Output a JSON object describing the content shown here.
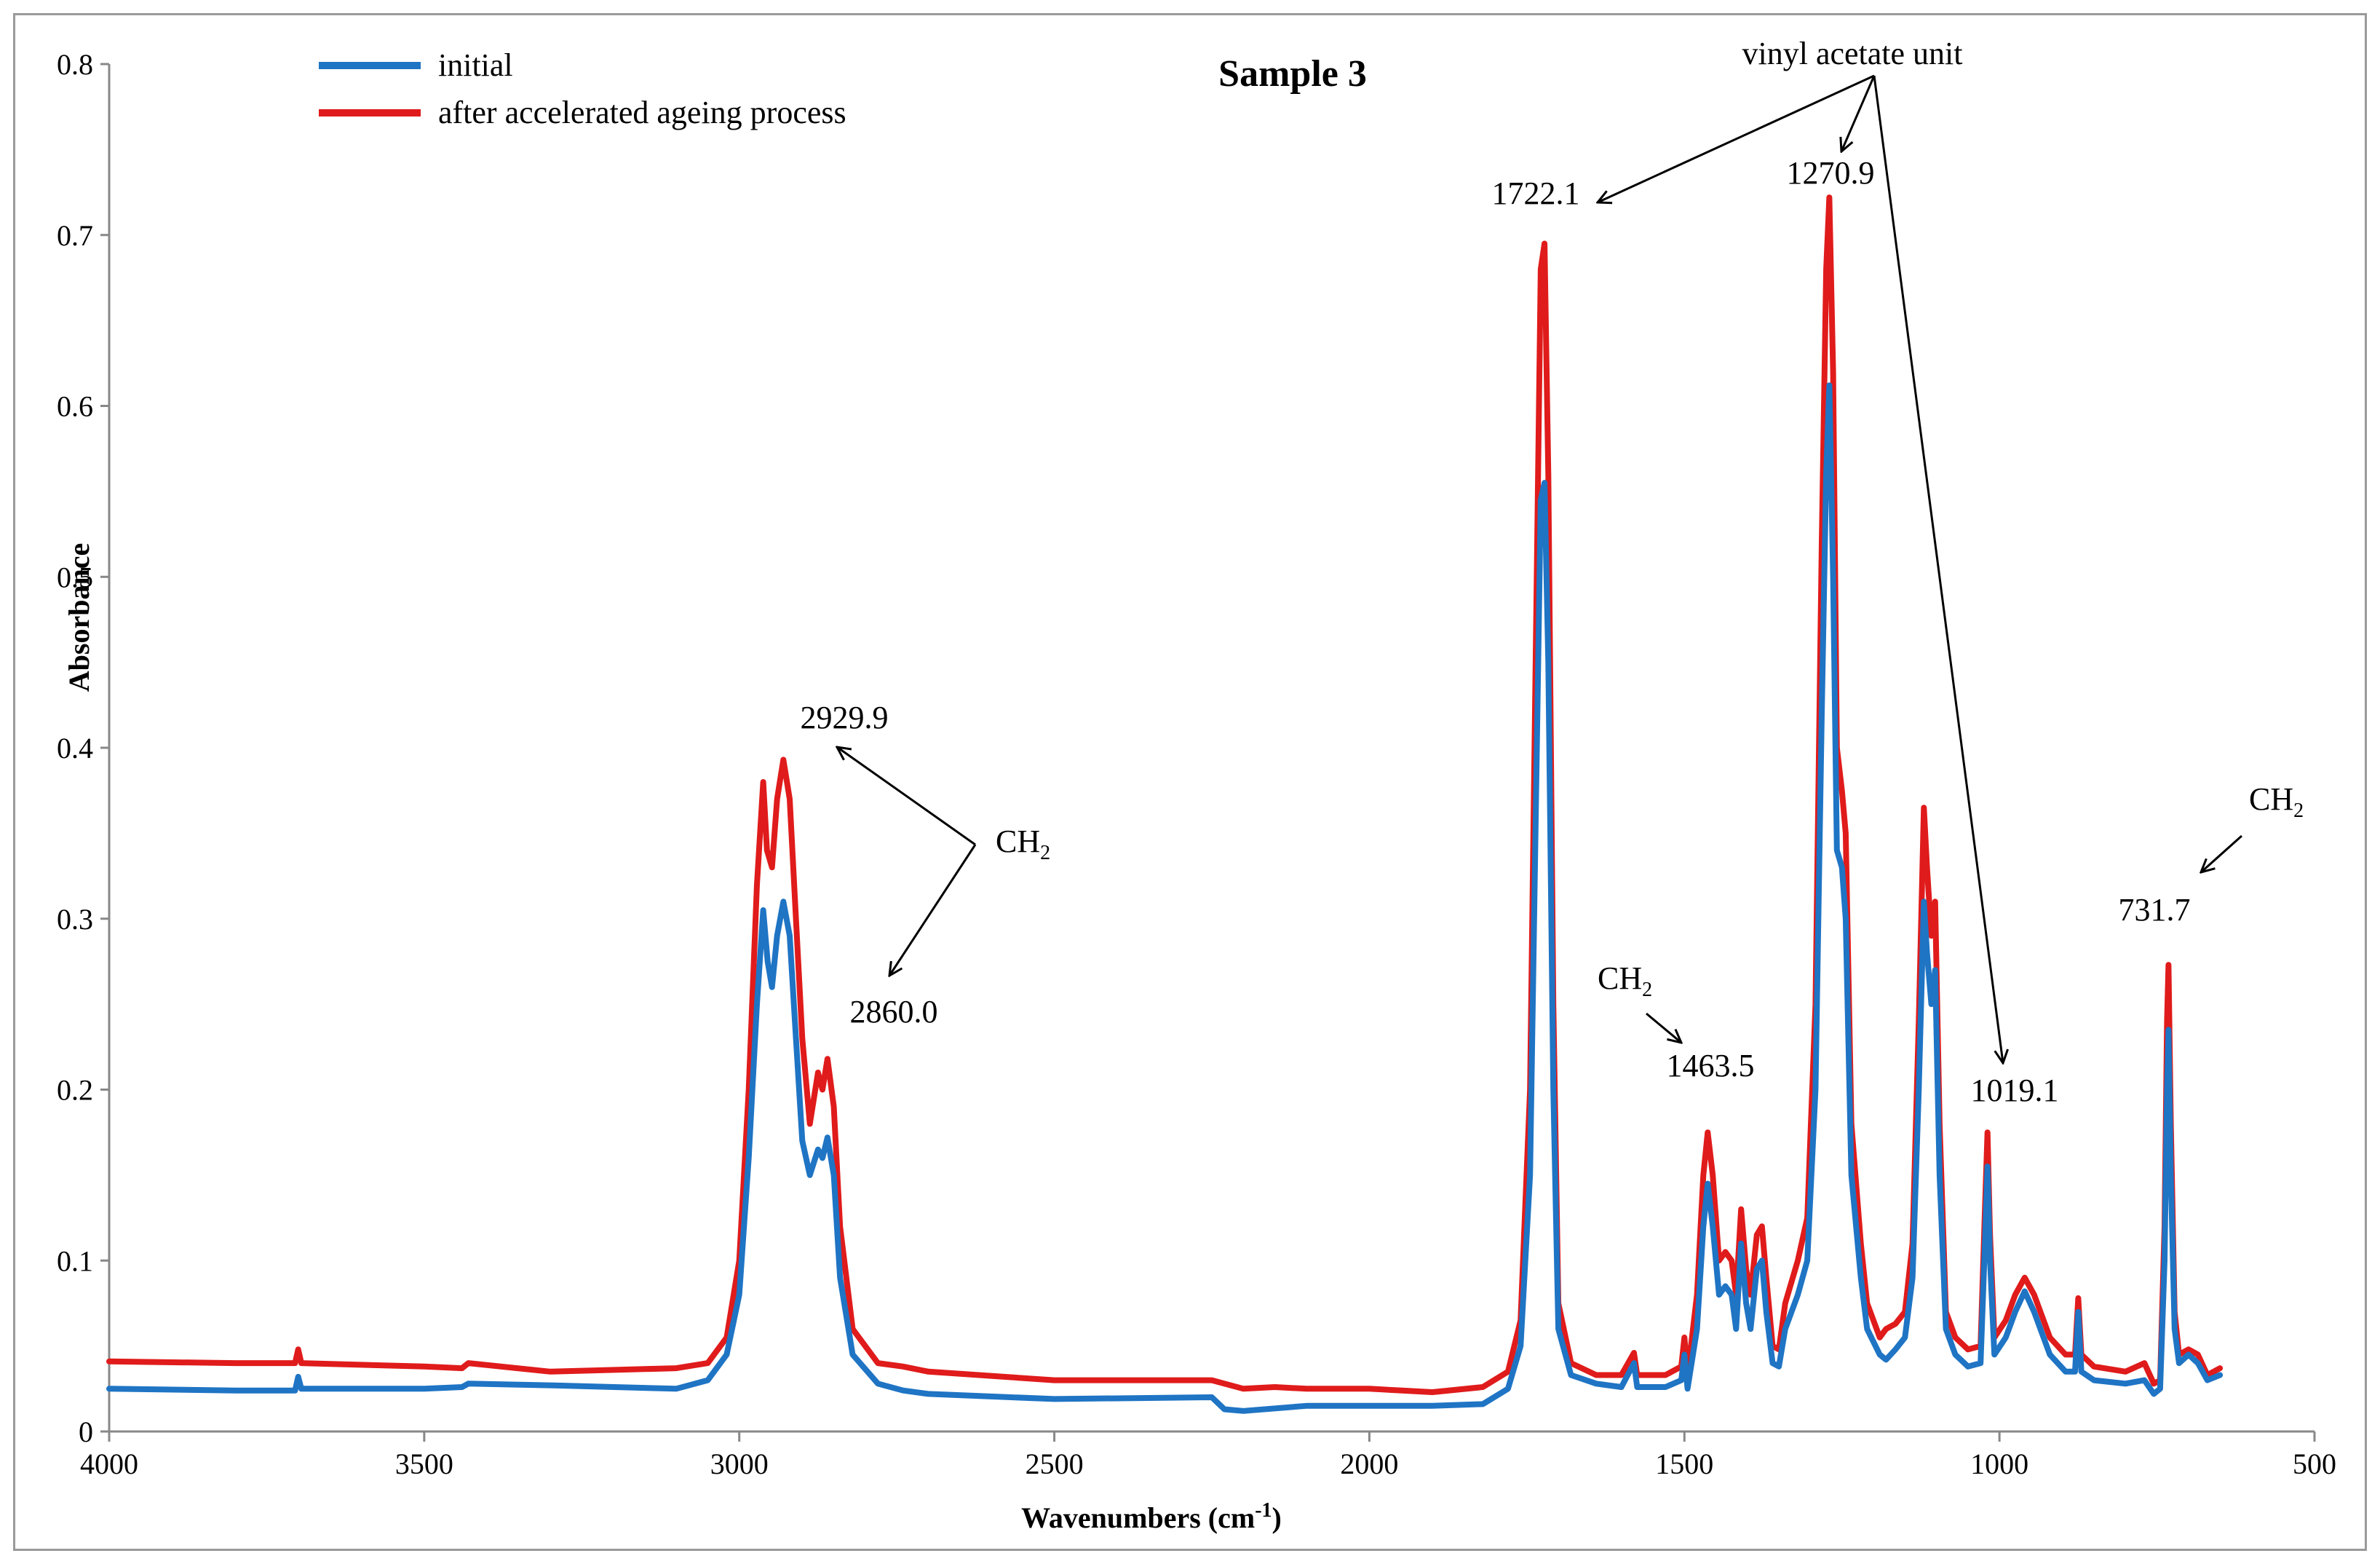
{
  "chart_data": {
    "type": "line",
    "title": "Sample 3",
    "xlabel": "Wavenumbers (cm",
    "xlabel_sup": "-1",
    "xlabel_end": ")",
    "ylabel": "Absorbance",
    "xlim": [
      4000,
      500
    ],
    "ylim": [
      0,
      0.8
    ],
    "x_ticks": [
      "4000",
      "3500",
      "3000",
      "2500",
      "2000",
      "1500",
      "1000",
      "500"
    ],
    "y_ticks": [
      "0",
      "0.1",
      "0.2",
      "0.3",
      "0.4",
      "0.5",
      "0.6",
      "0.7",
      "0.8"
    ],
    "legend_position": "top-left",
    "series": [
      {
        "name": "initial",
        "color": "#1f74c4",
        "points": [
          [
            4000,
            0.025
          ],
          [
            3800,
            0.024
          ],
          [
            3705,
            0.024
          ],
          [
            3700,
            0.032
          ],
          [
            3695,
            0.025
          ],
          [
            3500,
            0.025
          ],
          [
            3440,
            0.026
          ],
          [
            3430,
            0.028
          ],
          [
            3300,
            0.027
          ],
          [
            3100,
            0.025
          ],
          [
            3050,
            0.03
          ],
          [
            3020,
            0.045
          ],
          [
            3000,
            0.08
          ],
          [
            2985,
            0.16
          ],
          [
            2972,
            0.25
          ],
          [
            2962,
            0.305
          ],
          [
            2955,
            0.275
          ],
          [
            2948,
            0.26
          ],
          [
            2940,
            0.29
          ],
          [
            2930,
            0.31
          ],
          [
            2920,
            0.29
          ],
          [
            2910,
            0.23
          ],
          [
            2900,
            0.17
          ],
          [
            2888,
            0.15
          ],
          [
            2875,
            0.165
          ],
          [
            2868,
            0.16
          ],
          [
            2860,
            0.172
          ],
          [
            2850,
            0.15
          ],
          [
            2840,
            0.09
          ],
          [
            2820,
            0.045
          ],
          [
            2780,
            0.028
          ],
          [
            2740,
            0.024
          ],
          [
            2700,
            0.022
          ],
          [
            2500,
            0.019
          ],
          [
            2250,
            0.02
          ],
          [
            2230,
            0.013
          ],
          [
            2200,
            0.012
          ],
          [
            2100,
            0.015
          ],
          [
            2000,
            0.015
          ],
          [
            1900,
            0.015
          ],
          [
            1820,
            0.016
          ],
          [
            1780,
            0.025
          ],
          [
            1760,
            0.05
          ],
          [
            1745,
            0.15
          ],
          [
            1735,
            0.38
          ],
          [
            1728,
            0.545
          ],
          [
            1722,
            0.555
          ],
          [
            1716,
            0.45
          ],
          [
            1708,
            0.2
          ],
          [
            1700,
            0.06
          ],
          [
            1680,
            0.033
          ],
          [
            1640,
            0.028
          ],
          [
            1600,
            0.026
          ],
          [
            1580,
            0.04
          ],
          [
            1575,
            0.026
          ],
          [
            1530,
            0.026
          ],
          [
            1505,
            0.03
          ],
          [
            1500,
            0.045
          ],
          [
            1495,
            0.025
          ],
          [
            1480,
            0.06
          ],
          [
            1470,
            0.12
          ],
          [
            1463,
            0.145
          ],
          [
            1455,
            0.12
          ],
          [
            1445,
            0.08
          ],
          [
            1435,
            0.085
          ],
          [
            1425,
            0.08
          ],
          [
            1418,
            0.06
          ],
          [
            1410,
            0.11
          ],
          [
            1402,
            0.075
          ],
          [
            1395,
            0.06
          ],
          [
            1385,
            0.095
          ],
          [
            1377,
            0.1
          ],
          [
            1370,
            0.07
          ],
          [
            1360,
            0.04
          ],
          [
            1350,
            0.038
          ],
          [
            1340,
            0.06
          ],
          [
            1320,
            0.08
          ],
          [
            1305,
            0.1
          ],
          [
            1292,
            0.2
          ],
          [
            1282,
            0.42
          ],
          [
            1275,
            0.56
          ],
          [
            1270,
            0.612
          ],
          [
            1264,
            0.5
          ],
          [
            1258,
            0.34
          ],
          [
            1250,
            0.33
          ],
          [
            1244,
            0.3
          ],
          [
            1235,
            0.15
          ],
          [
            1220,
            0.09
          ],
          [
            1210,
            0.06
          ],
          [
            1190,
            0.045
          ],
          [
            1180,
            0.042
          ],
          [
            1165,
            0.048
          ],
          [
            1150,
            0.055
          ],
          [
            1138,
            0.09
          ],
          [
            1128,
            0.2
          ],
          [
            1120,
            0.31
          ],
          [
            1115,
            0.28
          ],
          [
            1108,
            0.25
          ],
          [
            1102,
            0.27
          ],
          [
            1095,
            0.15
          ],
          [
            1085,
            0.06
          ],
          [
            1070,
            0.045
          ],
          [
            1050,
            0.038
          ],
          [
            1030,
            0.04
          ],
          [
            1023,
            0.11
          ],
          [
            1019,
            0.155
          ],
          [
            1015,
            0.1
          ],
          [
            1008,
            0.045
          ],
          [
            990,
            0.055
          ],
          [
            975,
            0.07
          ],
          [
            960,
            0.082
          ],
          [
            945,
            0.07
          ],
          [
            920,
            0.045
          ],
          [
            895,
            0.035
          ],
          [
            880,
            0.035
          ],
          [
            875,
            0.07
          ],
          [
            870,
            0.035
          ],
          [
            850,
            0.03
          ],
          [
            800,
            0.028
          ],
          [
            770,
            0.03
          ],
          [
            755,
            0.022
          ],
          [
            745,
            0.025
          ],
          [
            738,
            0.1
          ],
          [
            734,
            0.2
          ],
          [
            731.7,
            0.235
          ],
          [
            728,
            0.15
          ],
          [
            722,
            0.06
          ],
          [
            715,
            0.04
          ],
          [
            700,
            0.045
          ],
          [
            685,
            0.04
          ],
          [
            670,
            0.03
          ],
          [
            650,
            0.033
          ]
        ]
      },
      {
        "name": "after accelerated ageing process",
        "color": "#e01b1b",
        "points": [
          [
            4000,
            0.041
          ],
          [
            3800,
            0.04
          ],
          [
            3705,
            0.04
          ],
          [
            3700,
            0.048
          ],
          [
            3695,
            0.04
          ],
          [
            3500,
            0.038
          ],
          [
            3440,
            0.037
          ],
          [
            3430,
            0.04
          ],
          [
            3300,
            0.035
          ],
          [
            3100,
            0.037
          ],
          [
            3050,
            0.04
          ],
          [
            3020,
            0.055
          ],
          [
            3000,
            0.1
          ],
          [
            2985,
            0.2
          ],
          [
            2972,
            0.32
          ],
          [
            2962,
            0.38
          ],
          [
            2956,
            0.34
          ],
          [
            2948,
            0.33
          ],
          [
            2940,
            0.37
          ],
          [
            2930,
            0.393
          ],
          [
            2920,
            0.37
          ],
          [
            2910,
            0.3
          ],
          [
            2900,
            0.23
          ],
          [
            2888,
            0.18
          ],
          [
            2875,
            0.21
          ],
          [
            2868,
            0.2
          ],
          [
            2860,
            0.218
          ],
          [
            2850,
            0.19
          ],
          [
            2840,
            0.12
          ],
          [
            2820,
            0.06
          ],
          [
            2780,
            0.04
          ],
          [
            2740,
            0.038
          ],
          [
            2700,
            0.035
          ],
          [
            2500,
            0.03
          ],
          [
            2250,
            0.03
          ],
          [
            2200,
            0.025
          ],
          [
            2150,
            0.026
          ],
          [
            2100,
            0.025
          ],
          [
            2000,
            0.025
          ],
          [
            1900,
            0.023
          ],
          [
            1820,
            0.026
          ],
          [
            1780,
            0.035
          ],
          [
            1760,
            0.065
          ],
          [
            1745,
            0.2
          ],
          [
            1735,
            0.48
          ],
          [
            1728,
            0.68
          ],
          [
            1722,
            0.695
          ],
          [
            1716,
            0.56
          ],
          [
            1708,
            0.25
          ],
          [
            1700,
            0.075
          ],
          [
            1680,
            0.04
          ],
          [
            1640,
            0.033
          ],
          [
            1600,
            0.033
          ],
          [
            1580,
            0.046
          ],
          [
            1575,
            0.033
          ],
          [
            1530,
            0.033
          ],
          [
            1505,
            0.038
          ],
          [
            1500,
            0.055
          ],
          [
            1495,
            0.033
          ],
          [
            1480,
            0.08
          ],
          [
            1470,
            0.15
          ],
          [
            1463,
            0.175
          ],
          [
            1455,
            0.15
          ],
          [
            1445,
            0.1
          ],
          [
            1435,
            0.105
          ],
          [
            1425,
            0.1
          ],
          [
            1418,
            0.08
          ],
          [
            1410,
            0.13
          ],
          [
            1402,
            0.095
          ],
          [
            1395,
            0.08
          ],
          [
            1385,
            0.115
          ],
          [
            1377,
            0.12
          ],
          [
            1370,
            0.09
          ],
          [
            1360,
            0.05
          ],
          [
            1350,
            0.048
          ],
          [
            1340,
            0.075
          ],
          [
            1320,
            0.1
          ],
          [
            1305,
            0.125
          ],
          [
            1292,
            0.25
          ],
          [
            1282,
            0.52
          ],
          [
            1275,
            0.68
          ],
          [
            1270,
            0.722
          ],
          [
            1264,
            0.62
          ],
          [
            1258,
            0.4
          ],
          [
            1250,
            0.375
          ],
          [
            1244,
            0.35
          ],
          [
            1235,
            0.18
          ],
          [
            1220,
            0.11
          ],
          [
            1210,
            0.075
          ],
          [
            1190,
            0.055
          ],
          [
            1180,
            0.06
          ],
          [
            1165,
            0.063
          ],
          [
            1150,
            0.07
          ],
          [
            1138,
            0.11
          ],
          [
            1128,
            0.24
          ],
          [
            1120,
            0.365
          ],
          [
            1115,
            0.33
          ],
          [
            1108,
            0.29
          ],
          [
            1102,
            0.31
          ],
          [
            1095,
            0.18
          ],
          [
            1085,
            0.07
          ],
          [
            1070,
            0.055
          ],
          [
            1050,
            0.048
          ],
          [
            1030,
            0.05
          ],
          [
            1023,
            0.13
          ],
          [
            1019,
            0.175
          ],
          [
            1015,
            0.115
          ],
          [
            1008,
            0.055
          ],
          [
            990,
            0.065
          ],
          [
            975,
            0.08
          ],
          [
            960,
            0.09
          ],
          [
            945,
            0.08
          ],
          [
            920,
            0.055
          ],
          [
            895,
            0.045
          ],
          [
            880,
            0.045
          ],
          [
            875,
            0.078
          ],
          [
            870,
            0.045
          ],
          [
            850,
            0.038
          ],
          [
            800,
            0.035
          ],
          [
            770,
            0.04
          ],
          [
            755,
            0.028
          ],
          [
            745,
            0.03
          ],
          [
            738,
            0.12
          ],
          [
            734,
            0.24
          ],
          [
            731.7,
            0.273
          ],
          [
            728,
            0.18
          ],
          [
            722,
            0.07
          ],
          [
            715,
            0.045
          ],
          [
            700,
            0.048
          ],
          [
            685,
            0.045
          ],
          [
            670,
            0.033
          ],
          [
            650,
            0.037
          ]
        ]
      }
    ],
    "annotations": [
      {
        "text": "vinyl  acetate unit"
      },
      {
        "text": "1722.1"
      },
      {
        "text": "1270.9"
      },
      {
        "text": "2929.9"
      },
      {
        "text": "CH",
        "sub": "2"
      },
      {
        "text": "2860.0"
      },
      {
        "text": "CH",
        "sub": "2"
      },
      {
        "text": "1463.5"
      },
      {
        "text": "1019.1"
      },
      {
        "text": "CH",
        "sub": "2"
      },
      {
        "text": "731.7"
      }
    ]
  }
}
